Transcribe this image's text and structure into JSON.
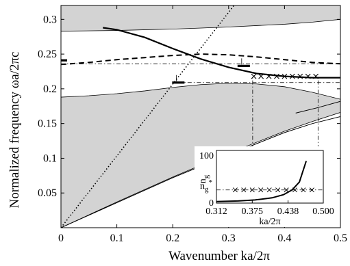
{
  "chart_data": [
    {
      "type": "line",
      "title": "",
      "xlabel": "Wavenumber ka/2π",
      "ylabel": "Normalized frequency ωa/2πc",
      "xlim": [
        0,
        0.5
      ],
      "ylim": [
        0,
        0.32
      ],
      "x_ticks": [
        0,
        0.1,
        0.2,
        0.3,
        0.4,
        0.5
      ],
      "y_ticks": [
        0.05,
        0.1,
        0.15,
        0.2,
        0.25,
        0.3
      ],
      "x_tick_labels": [
        "0",
        "0.1",
        "0.2",
        "0.3",
        "0.4",
        "0.5"
      ],
      "y_tick_labels": [
        "0.05",
        "0.1",
        "0.15",
        "0.2",
        "0.25",
        "0.3"
      ],
      "grid": false,
      "shaded_regions": [
        {
          "upper": [
            [
              0,
              0.32
            ],
            [
              0.5,
              0.32
            ]
          ],
          "lower": [
            [
              0,
              0.283
            ],
            [
              0.1,
              0.284
            ],
            [
              0.2,
              0.286
            ],
            [
              0.3,
              0.289
            ],
            [
              0.4,
              0.293
            ],
            [
              0.45,
              0.296
            ],
            [
              0.5,
              0.3
            ]
          ]
        },
        {
          "upper": [
            [
              0,
              0.188
            ],
            [
              0.05,
              0.19
            ],
            [
              0.1,
              0.193
            ],
            [
              0.15,
              0.197
            ],
            [
              0.2,
              0.202
            ],
            [
              0.25,
              0.206
            ],
            [
              0.3,
              0.208
            ],
            [
              0.35,
              0.207
            ],
            [
              0.4,
              0.203
            ],
            [
              0.45,
              0.195
            ],
            [
              0.5,
              0.185
            ]
          ],
          "lower": [
            [
              0,
              0
            ],
            [
              0.1,
              0.037
            ],
            [
              0.2,
              0.073
            ],
            [
              0.3,
              0.107
            ],
            [
              0.4,
              0.139
            ],
            [
              0.45,
              0.153
            ],
            [
              0.5,
              0.166
            ]
          ]
        }
      ],
      "series": [
        {
          "style": "solid-thick",
          "x": [
            0.075,
            0.1,
            0.15,
            0.2,
            0.25,
            0.3,
            0.35,
            0.4,
            0.45,
            0.5
          ],
          "y": [
            0.288,
            0.285,
            0.274,
            0.258,
            0.243,
            0.231,
            0.222,
            0.218,
            0.216,
            0.216
          ]
        },
        {
          "style": "dashed-thick",
          "x": [
            0,
            0.05,
            0.1,
            0.15,
            0.2,
            0.25,
            0.3,
            0.35,
            0.4,
            0.45,
            0.5
          ],
          "y": [
            0.235,
            0.238,
            0.242,
            0.245,
            0.248,
            0.25,
            0.249,
            0.246,
            0.242,
            0.238,
            0.236
          ]
        },
        {
          "style": "solid-thin",
          "x": [
            0,
            0.1,
            0.2,
            0.3,
            0.35,
            0.4,
            0.45,
            0.5
          ],
          "y": [
            0,
            0.036,
            0.072,
            0.105,
            0.121,
            0.137,
            0.15,
            0.16
          ]
        },
        {
          "style": "solid-thin",
          "x": [
            0.42,
            0.46,
            0.5
          ],
          "y": [
            0.165,
            0.173,
            0.182
          ]
        },
        {
          "style": "dotted",
          "x": [
            0,
            0.3095
          ],
          "y": [
            0,
            0.32
          ]
        }
      ],
      "markers": {
        "symbol": "x",
        "x": [
          0.345,
          0.358,
          0.372,
          0.386,
          0.4,
          0.414,
          0.428,
          0.442,
          0.456
        ],
        "y": [
          0.218,
          0.218,
          0.218,
          0.218,
          0.218,
          0.218,
          0.218,
          0.218,
          0.218
        ]
      },
      "annotations": {
        "bars": [
          {
            "x": 0,
            "y": 0.241
          },
          {
            "x": 0.21,
            "y": 0.209
          },
          {
            "x": 0.327,
            "y": 0.233
          }
        ],
        "dashdot_horizontal": [
          {
            "x0": 0,
            "x1": 0.5,
            "y": 0.236
          },
          {
            "x0": 0.21,
            "x1": 0.5,
            "y": 0.209
          }
        ],
        "dashdot_vertical": [
          {
            "x": 0.343,
            "y0": 0.06,
            "y1": 0.218
          },
          {
            "x": 0.46,
            "y0": 0.06,
            "y1": 0.218
          }
        ]
      }
    },
    {
      "type": "line",
      "title": "",
      "xlabel": "ka/2π",
      "ylabel": "n_g",
      "xlim": [
        0.312,
        0.5
      ],
      "ylim": [
        0,
        100
      ],
      "x_ticks": [
        0.312,
        0.375,
        0.438,
        0.5
      ],
      "x_tick_labels": [
        "0.312",
        "0.375",
        "0.438",
        "0.500"
      ],
      "y_tick_labels": [
        "100",
        "0"
      ],
      "reference_label": "n_g*",
      "reference_value": 25,
      "series": [
        {
          "style": "solid-thick",
          "x": [
            0.312,
            0.35,
            0.38,
            0.41,
            0.43,
            0.445,
            0.458,
            0.47
          ],
          "y": [
            3,
            4,
            6,
            10,
            16,
            25,
            40,
            80
          ]
        }
      ],
      "markers": {
        "symbol": "x",
        "x": [
          0.345,
          0.36,
          0.375,
          0.39,
          0.405,
          0.42,
          0.435,
          0.45,
          0.465,
          0.48
        ],
        "y": [
          25,
          25,
          25,
          25,
          25,
          25,
          25,
          25,
          25,
          25
        ]
      }
    }
  ]
}
